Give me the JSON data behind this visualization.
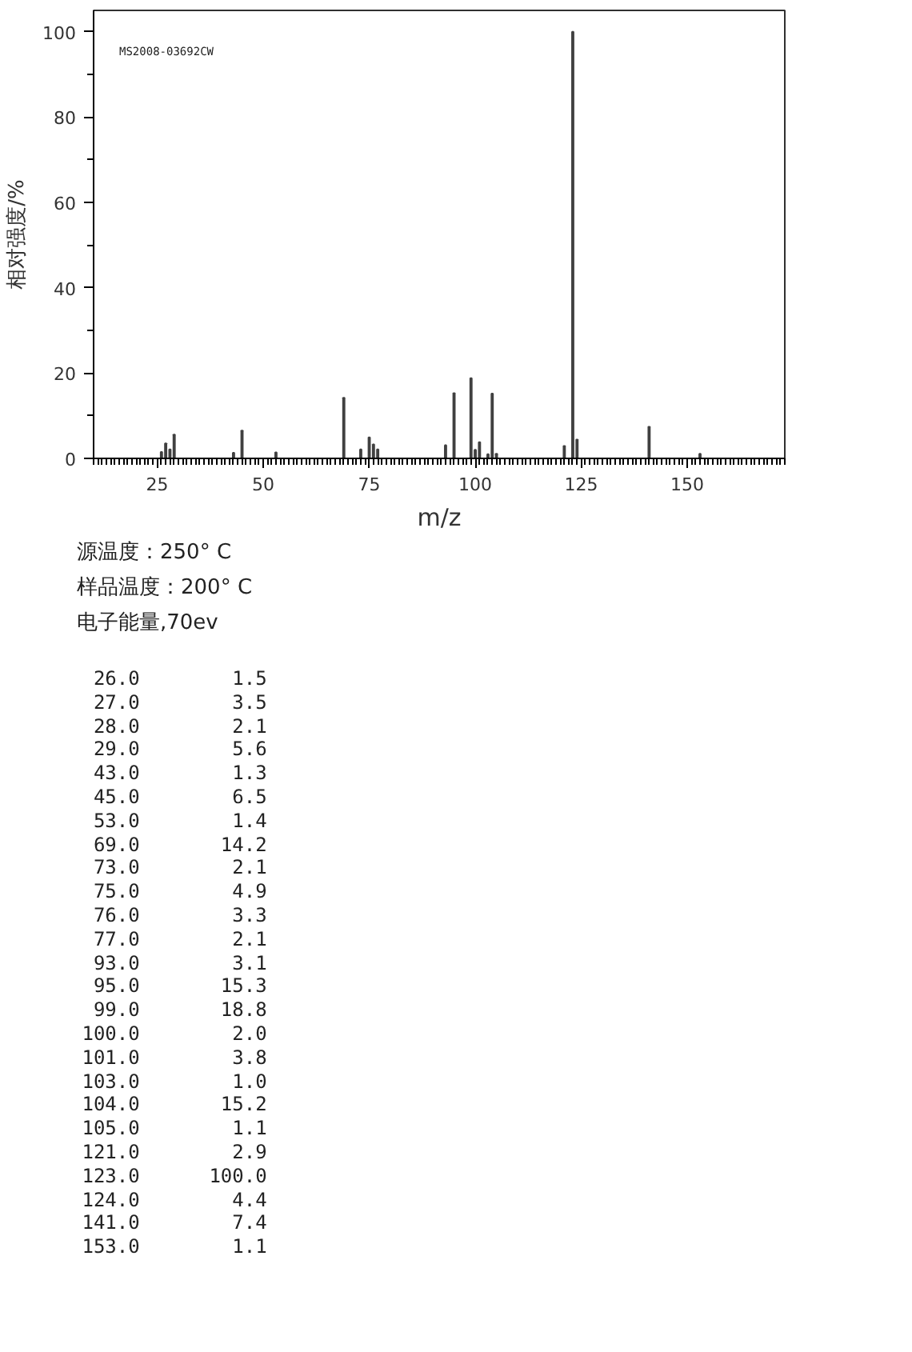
{
  "chart_data": {
    "type": "bar",
    "xlabel": "m/z",
    "ylabel": "相对强度/%",
    "x": [
      26.0,
      27.0,
      28.0,
      29.0,
      43.0,
      45.0,
      53.0,
      69.0,
      73.0,
      75.0,
      76.0,
      77.0,
      93.0,
      95.0,
      99.0,
      100.0,
      101.0,
      103.0,
      104.0,
      105.0,
      121.0,
      123.0,
      124.0,
      141.0,
      153.0
    ],
    "values": [
      1.5,
      3.5,
      2.1,
      5.6,
      1.3,
      6.5,
      1.4,
      14.2,
      2.1,
      4.9,
      3.3,
      2.1,
      3.1,
      15.3,
      18.8,
      2.0,
      3.8,
      1.0,
      15.2,
      1.1,
      2.9,
      100.0,
      4.4,
      7.4,
      1.1
    ],
    "color": "#404040",
    "xlim": [
      10,
      173
    ],
    "xticks": [
      25,
      50,
      75,
      100,
      125,
      150
    ],
    "ylim": [
      0,
      105
    ],
    "yticks": [
      0,
      20,
      40,
      60,
      80,
      100
    ],
    "grid": false,
    "annotations": [
      "MS2008-03692CW",
      "源温度：250° C",
      "样品温度：200° C",
      "电子能量,70ev",
      "26.0 1.5",
      "27.0 3.5",
      "28.0 2.1",
      "29.0 5.6",
      "43.0 1.3",
      "45.0 6.5",
      "53.0 1.4",
      "69.0 14.2",
      "73.0 2.1",
      "75.0 4.9",
      "76.0 3.3",
      "77.0 2.1",
      "93.0 3.1",
      "95.0 15.3",
      "99.0 18.8",
      "100.0 2.0",
      "101.0 3.8",
      "103.0 1.0",
      "104.0 15.2",
      "105.0 1.1",
      "121.0 2.9",
      "123.0 100.0",
      "124.0 4.4",
      "141.0 7.4",
      "153.0 1.1"
    ]
  }
}
